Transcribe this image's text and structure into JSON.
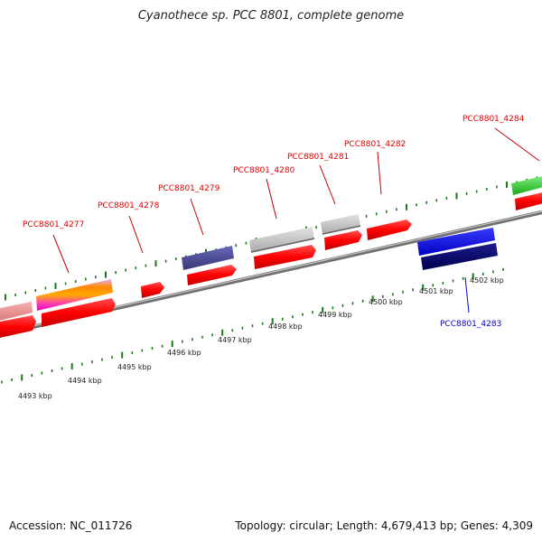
{
  "title": "Cyanothece sp. PCC 8801, complete genome",
  "footer": {
    "accession": "Accession: NC_011726",
    "summary": "Topology: circular; Length: 4,679,413 bp; Genes: 4,309"
  },
  "colors": {
    "forward_label": "#dd0000",
    "reverse_label": "#0000cc",
    "tick": "#1a7a1a",
    "backbone": "#8f8f8f"
  },
  "kbp_labels": [
    "4493 kbp",
    "4494 kbp",
    "4495 kbp",
    "4496 kbp",
    "4497 kbp",
    "4498 kbp",
    "4499 kbp",
    "4500 kbp",
    "4501 kbp",
    "4502 kbp"
  ],
  "gene_labels": [
    {
      "text": "PCC8801_4277",
      "strand": "forward"
    },
    {
      "text": "PCC8801_4278",
      "strand": "forward"
    },
    {
      "text": "PCC8801_4279",
      "strand": "forward"
    },
    {
      "text": "PCC8801_4280",
      "strand": "forward"
    },
    {
      "text": "PCC8801_4281",
      "strand": "forward"
    },
    {
      "text": "PCC8801_4282",
      "strand": "forward"
    },
    {
      "text": "PCC8801_4284",
      "strand": "forward"
    },
    {
      "text": "PCC8801_4283",
      "strand": "reverse"
    }
  ]
}
